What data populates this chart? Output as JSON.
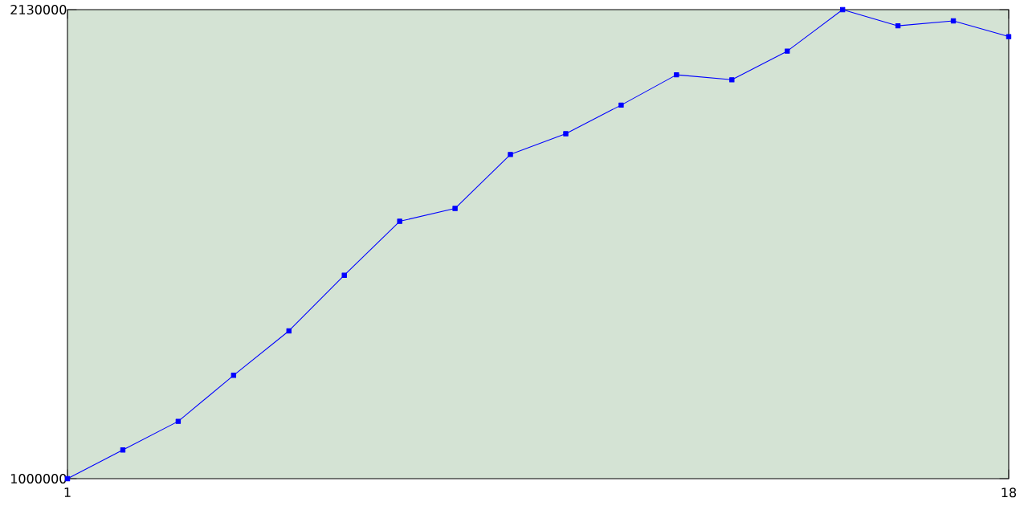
{
  "chart_data": {
    "type": "line",
    "x": [
      1,
      2,
      3,
      4,
      5,
      6,
      7,
      8,
      9,
      10,
      11,
      12,
      13,
      14,
      15,
      16,
      17,
      18
    ],
    "values": [
      1000000,
      1069000,
      1138000,
      1249000,
      1356000,
      1490000,
      1620000,
      1651000,
      1781000,
      1831000,
      1900000,
      1973000,
      1961000,
      2030000,
      2130000,
      2091000,
      2103000,
      2065000
    ],
    "color": "#0000ff",
    "marker": "square",
    "line_style": "solid",
    "grid": false,
    "xlim": [
      1,
      18
    ],
    "xticks": [
      1,
      18
    ],
    "ylim": [
      1000000,
      2130000
    ],
    "yticks": [
      1000000,
      2130000
    ]
  }
}
